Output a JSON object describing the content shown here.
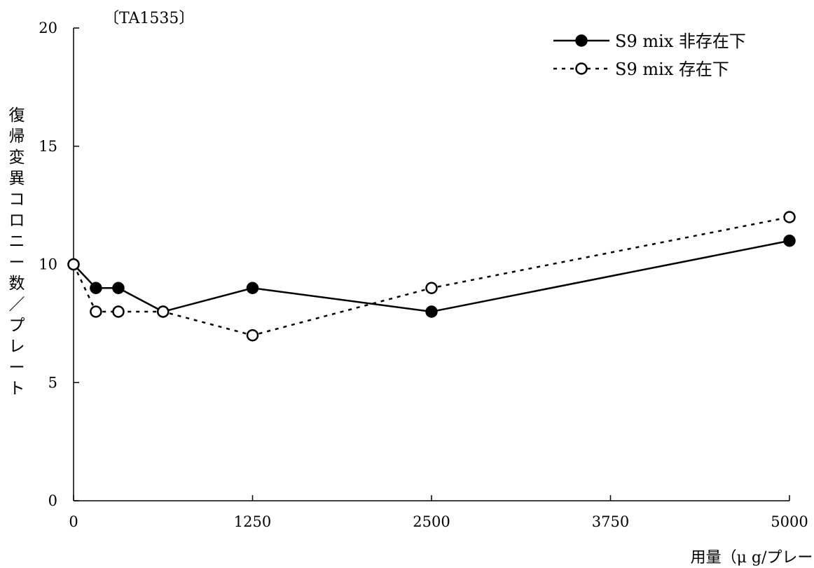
{
  "chart_data": {
    "type": "line",
    "panel_label": "〔TA1535〕",
    "xlabel": "用量（μ g/プレート）",
    "ylabel": "復帰変異コロニー数／プレート",
    "xlim": [
      0,
      5000
    ],
    "ylim": [
      0,
      20
    ],
    "x_ticks": [
      0,
      1250,
      2500,
      3750,
      5000
    ],
    "y_ticks": [
      0,
      5,
      10,
      15,
      20
    ],
    "legend_position": "top-right",
    "grid": false,
    "series": [
      {
        "name": "S9 mix 非存在下",
        "style": "solid",
        "marker": "filled-circle",
        "color": "#000000",
        "x": [
          0,
          156,
          313,
          625,
          1250,
          2500,
          5000
        ],
        "values": [
          10,
          9,
          9,
          8,
          9,
          8,
          11
        ]
      },
      {
        "name": "S9 mix 存在下",
        "style": "dotted",
        "marker": "open-circle",
        "color": "#000000",
        "x": [
          0,
          156,
          313,
          625,
          1250,
          2500,
          5000
        ],
        "values": [
          10,
          8,
          8,
          8,
          7,
          9,
          12
        ]
      }
    ]
  }
}
